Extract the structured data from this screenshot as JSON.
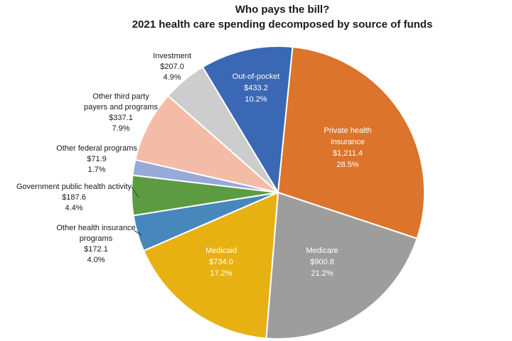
{
  "title": {
    "line1": "Who pays the bill?",
    "line2": "2021 health care spending decomposed by source of funds"
  },
  "chart_data": {
    "type": "pie",
    "title": "Who pays the bill? 2021 health care spending decomposed by source of funds",
    "direction": "clockwise",
    "start_angle_deg_from_12_oclock": -31,
    "legend": "none",
    "label_style": "category name, dollar value, percent of total",
    "total_pct": 100.0,
    "slices": [
      {
        "label": "Out-of-pocket",
        "value": 433.2,
        "value_display": "$433.2",
        "pct": 10.2,
        "pct_display": "10.2%",
        "color": "#3A68B4",
        "label_color": "#FFFFFF",
        "placement": "inside",
        "label_lines": [
          "Out-of-pocket"
        ],
        "label_x": 360,
        "label_y": 100
      },
      {
        "label": "Private health insurance",
        "value": 1211.4,
        "value_display": "$1,211.4",
        "pct": 28.5,
        "pct_display": "28.5%",
        "color": "#DC742B",
        "label_color": "#FFFFFF",
        "placement": "inside",
        "label_lines": [
          "Private health",
          "insurance"
        ],
        "label_x": 489,
        "label_y": 176
      },
      {
        "label": "Medicare",
        "value": 900.8,
        "value_display": "$900.8",
        "pct": 21.2,
        "pct_display": "21.2%",
        "color": "#9D9D9D",
        "label_color": "#FFFFFF",
        "placement": "inside",
        "label_lines": [
          "Medicare"
        ],
        "label_x": 453,
        "label_y": 345
      },
      {
        "label": "Medicaid",
        "value": 734.0,
        "value_display": "$734.0",
        "pct": 17.2,
        "pct_display": "17.2%",
        "color": "#E7B112",
        "label_color": "#FFFFFF",
        "placement": "inside",
        "label_lines": [
          "Medicaid"
        ],
        "label_x": 311,
        "label_y": 345
      },
      {
        "label": "Other health insurance programs",
        "value": 172.1,
        "value_display": "$172.1",
        "pct": 4.0,
        "pct_display": "4.0%",
        "color": "#4787BC",
        "label_color": "#1A1A1A",
        "placement": "outside",
        "label_lines": [
          "Other health insurance",
          "programs"
        ],
        "label_x": 135,
        "label_y": 314,
        "leader": [
          189,
          325,
          200,
          331
        ]
      },
      {
        "label": "Government public health activity",
        "value": 187.6,
        "value_display": "$187.6",
        "pct": 4.4,
        "pct_display": "4.4%",
        "color": "#5C9B42",
        "label_color": "#1A1A1A",
        "placement": "outside",
        "label_lines": [
          "Government public health activity"
        ],
        "label_x": 104,
        "label_y": 256,
        "leader": [
          185,
          263,
          195,
          278
        ]
      },
      {
        "label": "Other federal programs",
        "value": 71.9,
        "value_display": "$71.9",
        "pct": 1.7,
        "pct_display": "1.7%",
        "color": "#96A9D9",
        "label_color": "#1A1A1A",
        "placement": "outside",
        "label_lines": [
          "Other federal programs"
        ],
        "label_x": 136,
        "label_y": 202
      },
      {
        "label": "Other third party payers and programs",
        "value": 337.1,
        "value_display": "$337.1",
        "pct": 7.9,
        "pct_display": "7.9%",
        "color": "#F4BCA6",
        "label_color": "#1A1A1A",
        "placement": "outside",
        "label_lines": [
          "Other third party",
          "payers and programs"
        ],
        "label_x": 170,
        "label_y": 129
      },
      {
        "label": "Investment",
        "value": 207.0,
        "value_display": "$207.0",
        "pct": 4.9,
        "pct_display": "4.9%",
        "color": "#CDCDCD",
        "label_color": "#1A1A1A",
        "placement": "outside",
        "label_lines": [
          "Investment"
        ],
        "label_x": 242,
        "label_y": 72
      }
    ]
  }
}
